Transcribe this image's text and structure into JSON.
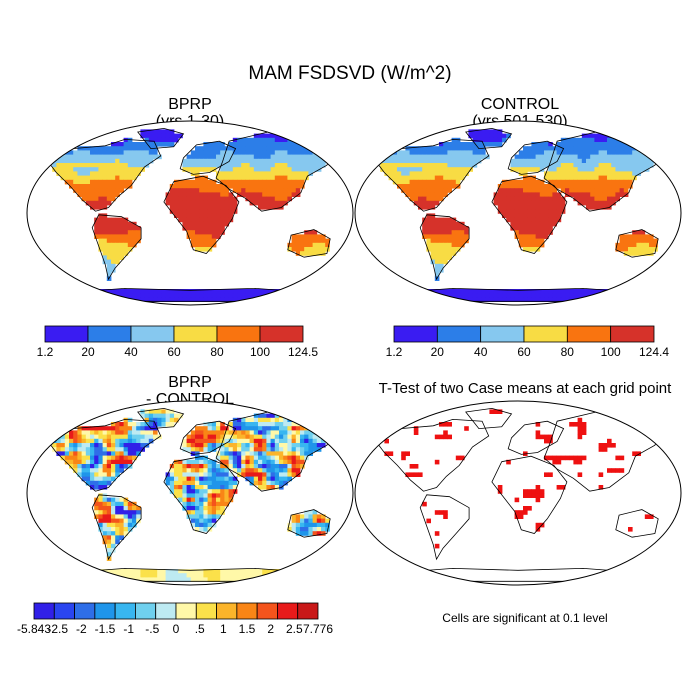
{
  "title": "MAM FSDSVD (W/m^2)",
  "panels": [
    {
      "id": "bprp",
      "title": "BPRP",
      "subtitle": "(yrs 1-30)"
    },
    {
      "id": "control",
      "title": "CONTROL",
      "subtitle": "(yrs 501-530)"
    },
    {
      "id": "diff",
      "title": "BPRP",
      "subtitle": "- CONTROL"
    },
    {
      "id": "ttest",
      "title": "T-Test of two Case means at each grid point",
      "subtitle": ""
    }
  ],
  "footnote": "Cells are significant at 0.1 level",
  "chart_data": [
    {
      "type": "heatmap",
      "map": "world",
      "title": "BPRP",
      "subtitle": "(yrs 1-30)",
      "colorbar": {
        "tick_labels": [
          "1.2",
          "20",
          "40",
          "60",
          "80",
          "100",
          "124.5"
        ],
        "colors": [
          "#3a1cf2",
          "#2c7ee8",
          "#86c8ef",
          "#f8dc44",
          "#f97410",
          "#d6322a"
        ],
        "min": 1.2,
        "max": 124.5
      }
    },
    {
      "type": "heatmap",
      "map": "world",
      "title": "CONTROL",
      "subtitle": "(yrs 501-530)",
      "colorbar": {
        "tick_labels": [
          "1.2",
          "20",
          "40",
          "60",
          "80",
          "100",
          "124.4"
        ],
        "colors": [
          "#3a1cf2",
          "#2c7ee8",
          "#86c8ef",
          "#f8dc44",
          "#f97410",
          "#d6322a"
        ],
        "min": 1.2,
        "max": 124.4
      }
    },
    {
      "type": "heatmap",
      "map": "world",
      "title": "BPRP",
      "subtitle": "- CONTROL",
      "colorbar": {
        "tick_labels": [
          "-5.843",
          "-2.5",
          "-2",
          "-1.5",
          "-1",
          "-.5",
          "0",
          ".5",
          "1",
          "1.5",
          "2",
          "2.5",
          "7.776"
        ],
        "colors": [
          "#3120e8",
          "#2a45f0",
          "#2e6ee8",
          "#1f95ea",
          "#38b6f0",
          "#6fd0ee",
          "#bdeaf2",
          "#fff8a8",
          "#fbe14a",
          "#fbb42a",
          "#f98516",
          "#f4541c",
          "#e81a1a",
          "#c91818"
        ],
        "min": -5.843,
        "max": 7.776
      }
    },
    {
      "type": "heatmap",
      "map": "world",
      "title": "T-Test of two Case means at each grid point",
      "significance_color": "#ee1111",
      "significance_level": "0.1"
    }
  ]
}
